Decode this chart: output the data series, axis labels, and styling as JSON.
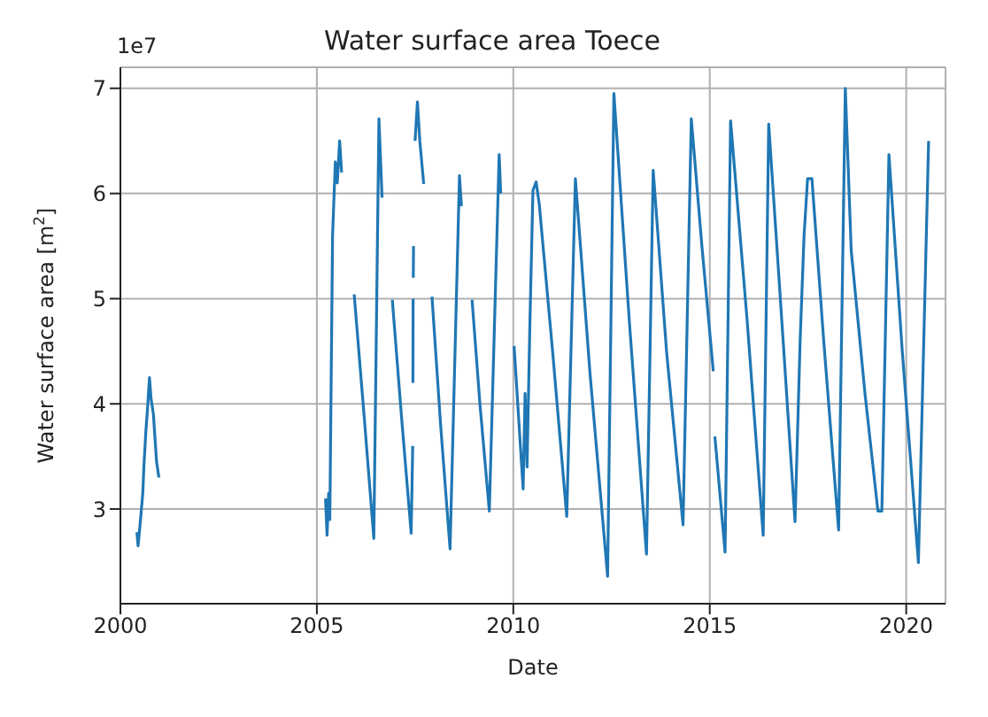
{
  "chart_data": {
    "type": "line",
    "title": "Water surface area Toece",
    "xlabel": "Date",
    "ylabel": "Water surface area [m$^{2}$]",
    "annotations": [
      "1e7"
    ],
    "x": [
      2000.42,
      2000.45,
      2000.5,
      2000.57,
      2000.6,
      2000.65,
      2000.69,
      2000.74,
      2000.78,
      2000.84,
      2000.92,
      2000.98,
      2001.0,
      2005.22,
      2005.26,
      2005.3,
      2005.33,
      2005.4,
      2005.47,
      2005.52,
      2005.58,
      2005.63,
      2005.7,
      2005.95,
      2006.2,
      2006.45,
      2006.58,
      2006.66,
      2006.8,
      2006.92,
      2007.15,
      2007.4,
      2007.44,
      2007.443,
      2007.445,
      2007.45,
      2007.453,
      2007.455,
      2007.46,
      2007.465,
      2007.5,
      2007.56,
      2007.62,
      2007.72,
      2007.8,
      2007.93,
      2008.15,
      2008.39,
      2008.63,
      2008.68,
      2008.8,
      2008.95,
      2009.15,
      2009.39,
      2009.64,
      2009.68,
      2009.8,
      2010.02,
      2010.25,
      2010.3,
      2010.35,
      2010.42,
      2010.5,
      2010.58,
      2010.66,
      2011.0,
      2011.36,
      2011.58,
      2011.95,
      2012.4,
      2012.56,
      2012.95,
      2013.39,
      2013.56,
      2013.9,
      2014.32,
      2014.53,
      2014.8,
      2015.09,
      2015.11,
      2015.13,
      2015.39,
      2015.53,
      2015.95,
      2016.36,
      2016.5,
      2016.85,
      2017.17,
      2017.3,
      2017.4,
      2017.49,
      2017.6,
      2017.9,
      2018.28,
      2018.45,
      2018.6,
      2018.95,
      2019.28,
      2019.38,
      2019.56,
      2019.9,
      2020.31,
      2020.57
    ],
    "series": [
      {
        "color": "#1f77b4",
        "values": [
          2.78,
          2.65,
          2.85,
          3.15,
          3.42,
          3.75,
          3.95,
          4.25,
          4.05,
          3.9,
          3.45,
          3.3,
          null,
          3.1,
          2.75,
          3.15,
          2.9,
          5.6,
          6.3,
          6.1,
          6.5,
          6.2,
          null,
          5.04,
          3.9,
          2.72,
          6.71,
          5.96,
          null,
          4.99,
          3.9,
          2.77,
          3.6,
          null,
          4.2,
          5.0,
          null,
          5.2,
          5.5,
          null,
          6.5,
          6.87,
          6.5,
          6.09,
          null,
          5.02,
          3.8,
          2.62,
          6.17,
          5.88,
          null,
          4.99,
          4.0,
          2.98,
          6.37,
          6.0,
          null,
          4.55,
          3.19,
          4.1,
          3.4,
          4.73,
          6.03,
          6.11,
          5.9,
          4.5,
          2.93,
          6.14,
          4.3,
          2.36,
          6.95,
          4.8,
          2.57,
          6.22,
          4.5,
          2.85,
          6.71,
          5.5,
          4.31,
          null,
          3.69,
          2.59,
          6.69,
          4.8,
          2.75,
          6.66,
          4.7,
          2.88,
          4.6,
          5.6,
          6.14,
          6.14,
          4.6,
          2.8,
          7.0,
          5.46,
          4.1,
          2.98,
          2.98,
          6.37,
          4.5,
          2.49,
          6.5
        ]
      }
    ],
    "xlim": [
      2000,
      2021
    ],
    "xticks": [
      2000,
      2005,
      2010,
      2015,
      2020
    ],
    "ylim": [
      2.1,
      7.2
    ],
    "yticks": [
      3,
      4,
      5,
      6,
      7
    ],
    "grid": true,
    "marker": "none",
    "line_style": "solid"
  }
}
